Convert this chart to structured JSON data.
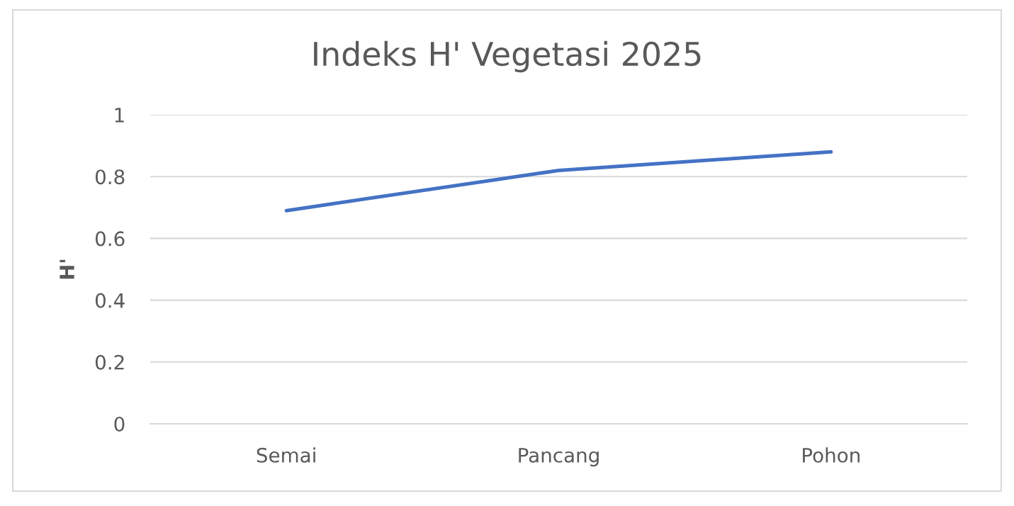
{
  "chart_data": {
    "type": "line",
    "title": "Indeks H' Vegetasi 2025",
    "ylabel": "H'",
    "categories": [
      "Semai",
      "Pancang",
      "Pohon"
    ],
    "series": [
      {
        "color": "#4472c4",
        "values": [
          0.69,
          0.82,
          0.88
        ]
      }
    ],
    "ylim": [
      0,
      1
    ],
    "yticks": [
      0,
      0.2,
      0.4,
      0.6,
      0.8,
      1
    ],
    "grid": "y",
    "legend": false,
    "marker": "none",
    "line_style": "solid"
  }
}
